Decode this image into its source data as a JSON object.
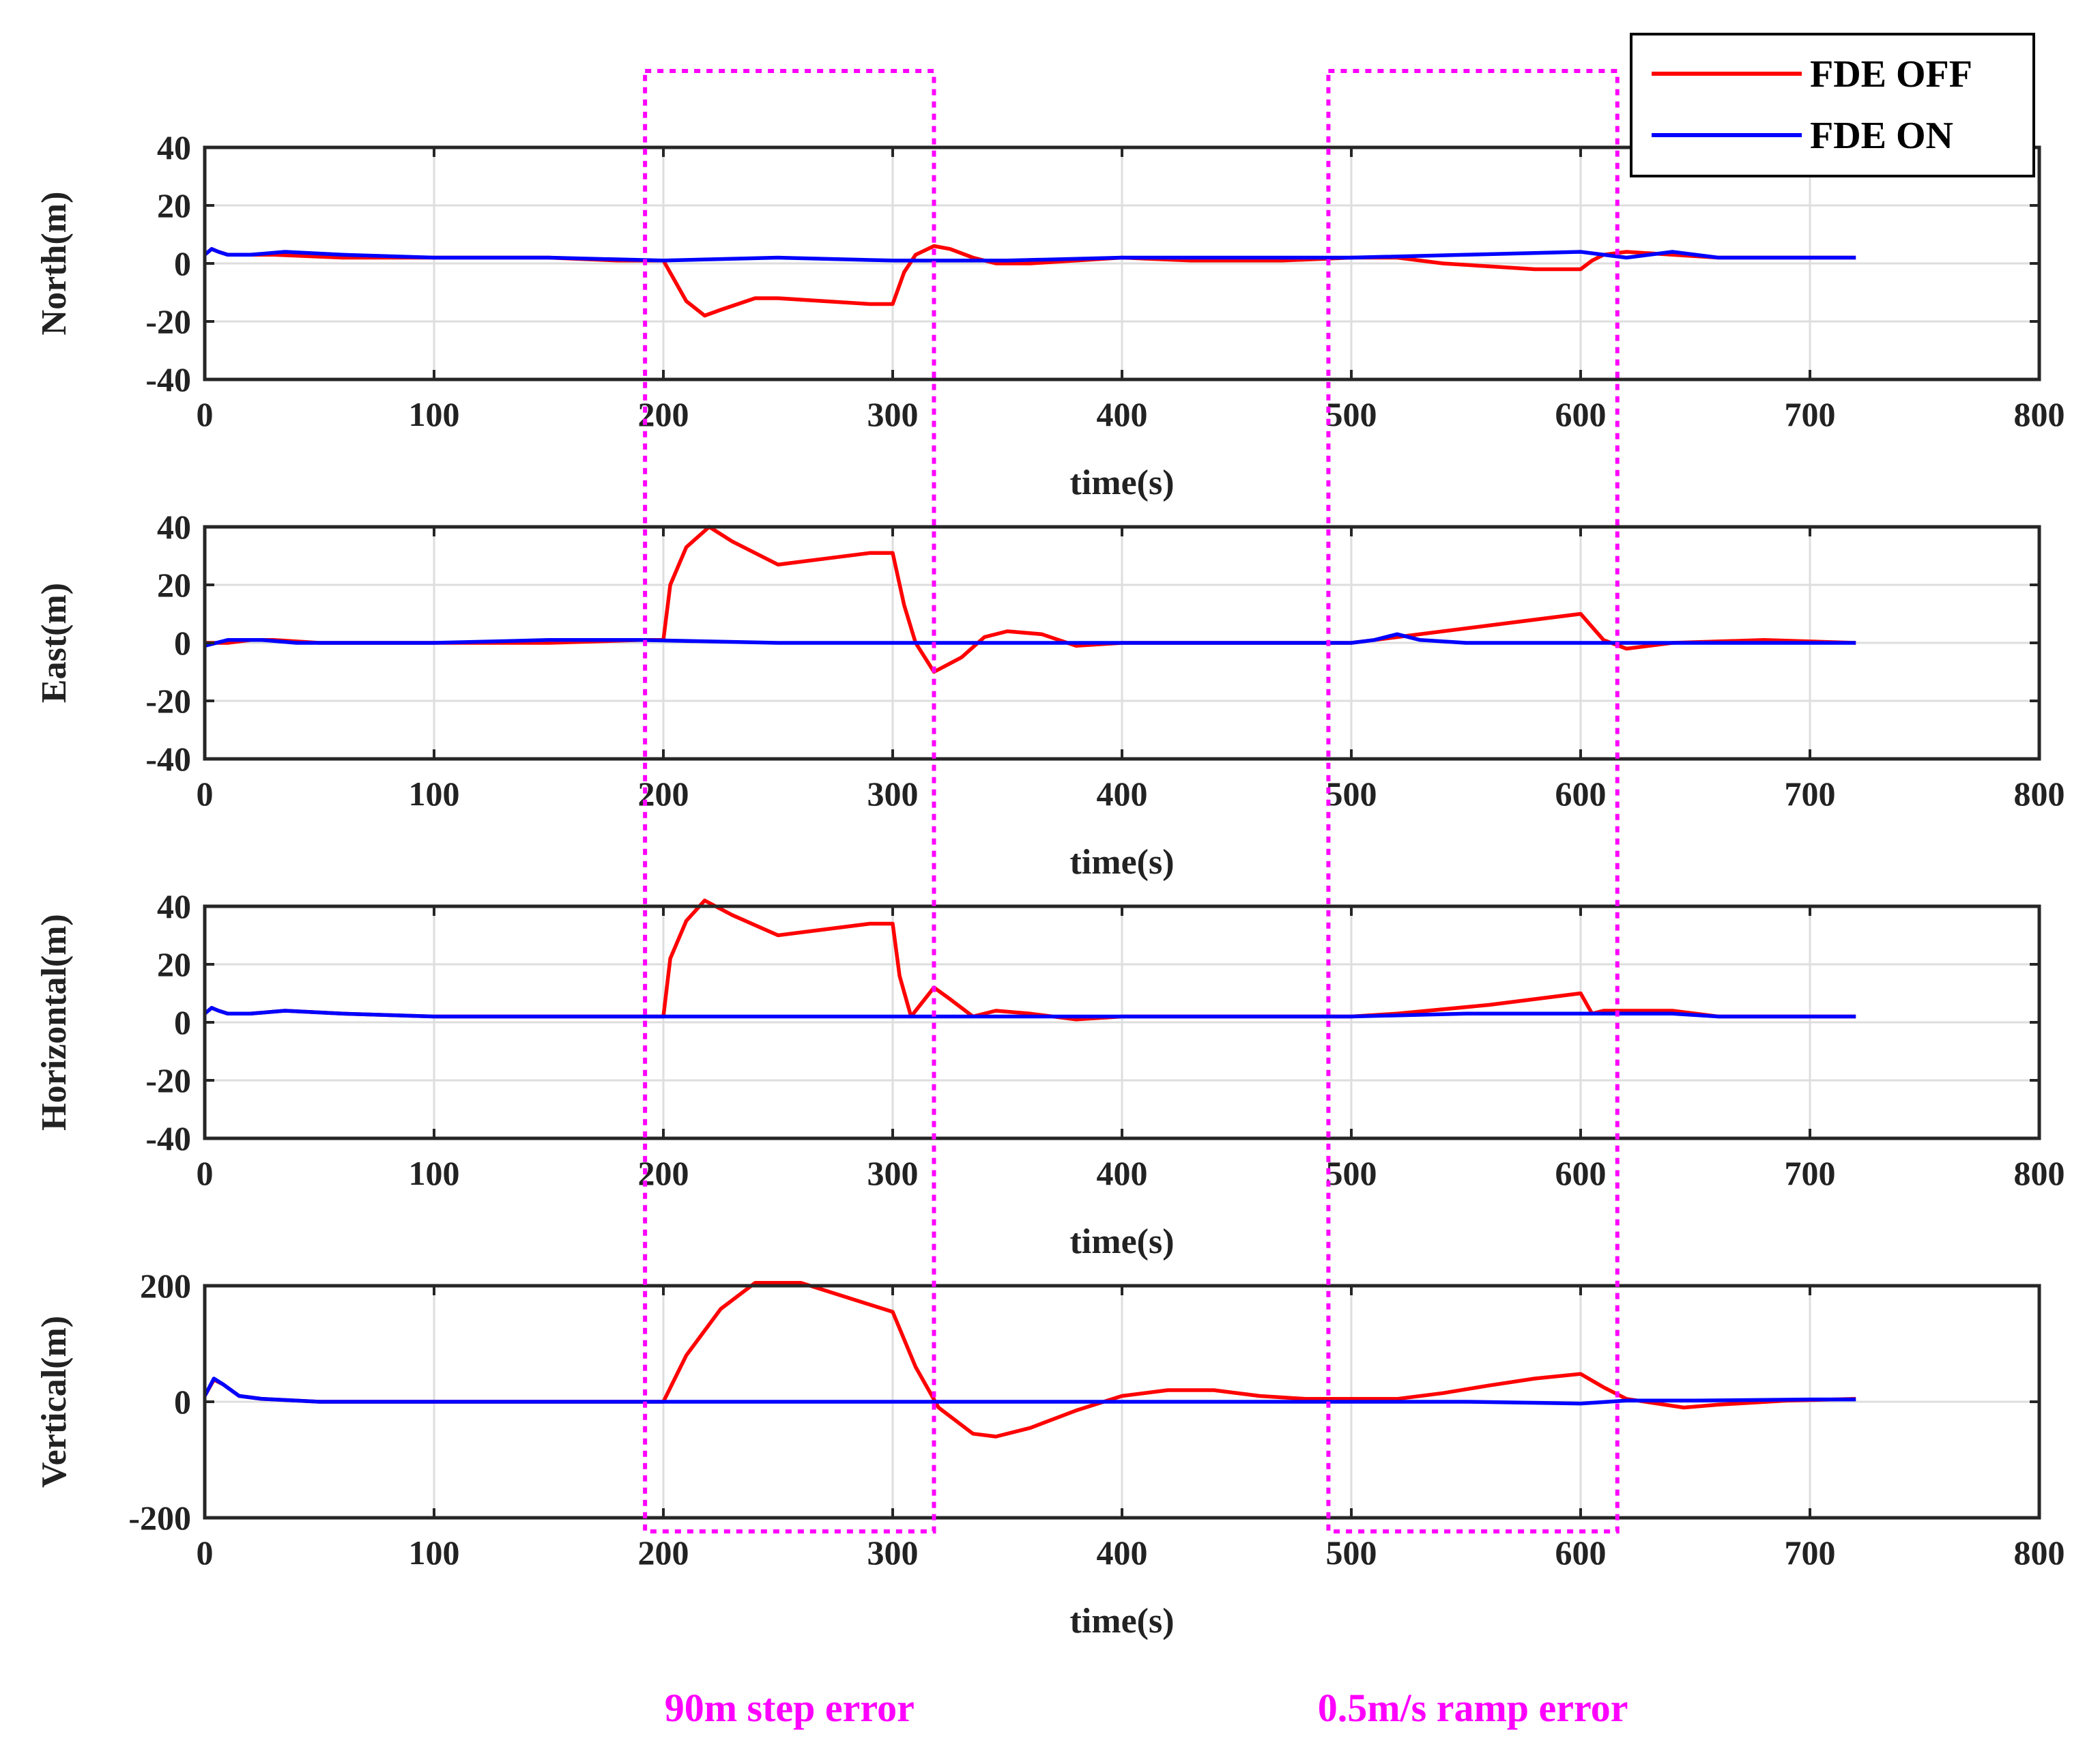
{
  "chart_data": {
    "type": "line",
    "shared_x": {
      "label": "time(s)",
      "range": [
        0,
        800
      ],
      "ticks": [
        0,
        100,
        200,
        300,
        400,
        500,
        600,
        700,
        800
      ],
      "tick_labels": [
        "0",
        "100",
        "200",
        "300",
        "400",
        "500",
        "600",
        "700",
        "800"
      ]
    },
    "legend": {
      "position": "top-right",
      "entries": [
        {
          "name": "FDE OFF",
          "color": "#ff0000"
        },
        {
          "name": "FDE ON",
          "color": "#0000ff"
        }
      ]
    },
    "annotations": [
      {
        "label": "90m step error",
        "x_range": [
          192,
          318
        ],
        "color": "#ff00ff"
      },
      {
        "label": "0.5m/s ramp error",
        "x_range": [
          490,
          616
        ],
        "color": "#ff00ff"
      }
    ],
    "panels": [
      {
        "ylabel": "North(m)",
        "ylim": [
          -40,
          40
        ],
        "yticks": [
          -40,
          -20,
          0,
          20,
          40
        ],
        "ytick_labels": [
          "-40",
          "-20",
          "0",
          "20",
          "40"
        ],
        "series": [
          {
            "name": "FDE OFF",
            "color": "#ff0000",
            "x": [
              0,
              3,
              6,
              10,
              15,
              30,
              60,
              100,
              150,
              180,
              200,
              205,
              210,
              218,
              225,
              240,
              250,
              270,
              290,
              300,
              305,
              310,
              318,
              325,
              335,
              345,
              360,
              380,
              400,
              430,
              470,
              500,
              520,
              540,
              560,
              580,
              600,
              605,
              610,
              620,
              640,
              660,
              700,
              720
            ],
            "y": [
              3,
              5,
              4,
              3,
              3,
              3,
              2,
              2,
              2,
              1,
              1,
              -6,
              -13,
              -18,
              -16,
              -12,
              -12,
              -13,
              -14,
              -14,
              -3,
              3,
              6,
              5,
              2,
              0,
              0,
              1,
              2,
              1,
              1,
              2,
              2,
              0,
              -1,
              -2,
              -2,
              1,
              3,
              4,
              3,
              2,
              2,
              2
            ]
          },
          {
            "name": "FDE ON",
            "color": "#0000ff",
            "x": [
              0,
              3,
              6,
              10,
              20,
              35,
              60,
              100,
              150,
              200,
              250,
              300,
              350,
              400,
              450,
              500,
              550,
              600,
              620,
              640,
              660,
              700,
              720
            ],
            "y": [
              3,
              5,
              4,
              3,
              3,
              4,
              3,
              2,
              2,
              1,
              2,
              1,
              1,
              2,
              2,
              2,
              3,
              4,
              2,
              4,
              2,
              2,
              2
            ]
          }
        ]
      },
      {
        "ylabel": "East(m)",
        "ylim": [
          -40,
          40
        ],
        "yticks": [
          -40,
          -20,
          0,
          20,
          40
        ],
        "ytick_labels": [
          "-40",
          "-20",
          "0",
          "20",
          "40"
        ],
        "series": [
          {
            "name": "FDE OFF",
            "color": "#ff0000",
            "x": [
              0,
              10,
              20,
              30,
              50,
              100,
              150,
              190,
              200,
              203,
              210,
              220,
              230,
              250,
              270,
              290,
              300,
              305,
              310,
              318,
              330,
              340,
              350,
              365,
              380,
              400,
              450,
              500,
              510,
              520,
              560,
              600,
              610,
              620,
              640,
              680,
              720
            ],
            "y": [
              0,
              0,
              1,
              1,
              0,
              0,
              0,
              1,
              1,
              20,
              33,
              40,
              35,
              27,
              29,
              31,
              31,
              13,
              0,
              -10,
              -5,
              2,
              4,
              3,
              -1,
              0,
              0,
              0,
              1,
              2,
              6,
              10,
              1,
              -2,
              0,
              1,
              0
            ]
          },
          {
            "name": "FDE ON",
            "color": "#0000ff",
            "x": [
              0,
              10,
              25,
              40,
              100,
              150,
              190,
              250,
              300,
              350,
              400,
              450,
              500,
              510,
              520,
              530,
              550,
              600,
              650,
              720
            ],
            "y": [
              -1,
              1,
              1,
              0,
              0,
              1,
              1,
              0,
              0,
              0,
              0,
              0,
              0,
              1,
              3,
              1,
              0,
              0,
              0,
              0
            ]
          }
        ]
      },
      {
        "ylabel": "Horizontal(m)",
        "ylim": [
          -40,
          40
        ],
        "yticks": [
          -40,
          -20,
          0,
          20,
          40
        ],
        "ytick_labels": [
          "-40",
          "-20",
          "0",
          "20",
          "40"
        ],
        "series": [
          {
            "name": "FDE OFF",
            "color": "#ff0000",
            "x": [
              0,
              3,
              6,
              10,
              20,
              35,
              60,
              100,
              150,
              200,
              203,
              210,
              218,
              230,
              250,
              270,
              290,
              300,
              303,
              308,
              318,
              325,
              335,
              345,
              360,
              380,
              400,
              450,
              500,
              520,
              560,
              600,
              605,
              610,
              620,
              640,
              660,
              720
            ],
            "y": [
              3,
              5,
              4,
              3,
              3,
              4,
              3,
              2,
              2,
              2,
              22,
              35,
              42,
              37,
              30,
              32,
              34,
              34,
              16,
              2,
              12,
              8,
              2,
              4,
              3,
              1,
              2,
              2,
              2,
              3,
              6,
              10,
              3,
              4,
              4,
              4,
              2,
              2
            ]
          },
          {
            "name": "FDE ON",
            "color": "#0000ff",
            "x": [
              0,
              3,
              6,
              10,
              20,
              35,
              60,
              100,
              150,
              200,
              250,
              300,
              350,
              400,
              450,
              500,
              550,
              600,
              620,
              640,
              660,
              700,
              720
            ],
            "y": [
              3,
              5,
              4,
              3,
              3,
              4,
              3,
              2,
              2,
              2,
              2,
              2,
              2,
              2,
              2,
              2,
              3,
              3,
              3,
              3,
              2,
              2,
              2
            ]
          }
        ]
      },
      {
        "ylabel": "Vertical(m)",
        "ylim": [
          -200,
          200
        ],
        "yticks": [
          -200,
          0,
          200
        ],
        "ytick_labels": [
          "-200",
          "0",
          "200"
        ],
        "series": [
          {
            "name": "FDE OFF",
            "color": "#ff0000",
            "x": [
              0,
              4,
              8,
              15,
              25,
              50,
              100,
              150,
              200,
              210,
              225,
              240,
              260,
              280,
              300,
              310,
              320,
              335,
              345,
              360,
              380,
              400,
              420,
              440,
              460,
              480,
              500,
              520,
              540,
              560,
              580,
              600,
              610,
              620,
              645,
              660,
              690,
              720
            ],
            "y": [
              10,
              38,
              30,
              10,
              5,
              0,
              0,
              0,
              0,
              80,
              160,
              205,
              205,
              180,
              155,
              60,
              -10,
              -55,
              -60,
              -45,
              -15,
              10,
              20,
              20,
              10,
              5,
              5,
              5,
              15,
              28,
              40,
              48,
              25,
              5,
              -10,
              -5,
              2,
              5
            ]
          },
          {
            "name": "FDE ON",
            "color": "#0000ff",
            "x": [
              0,
              4,
              8,
              15,
              25,
              50,
              100,
              150,
              200,
              250,
              300,
              350,
              400,
              450,
              500,
              550,
              600,
              620,
              650,
              700,
              720
            ],
            "y": [
              10,
              40,
              30,
              10,
              5,
              0,
              0,
              0,
              0,
              0,
              0,
              0,
              0,
              0,
              0,
              0,
              -3,
              2,
              2,
              4,
              4
            ]
          }
        ]
      }
    ]
  }
}
